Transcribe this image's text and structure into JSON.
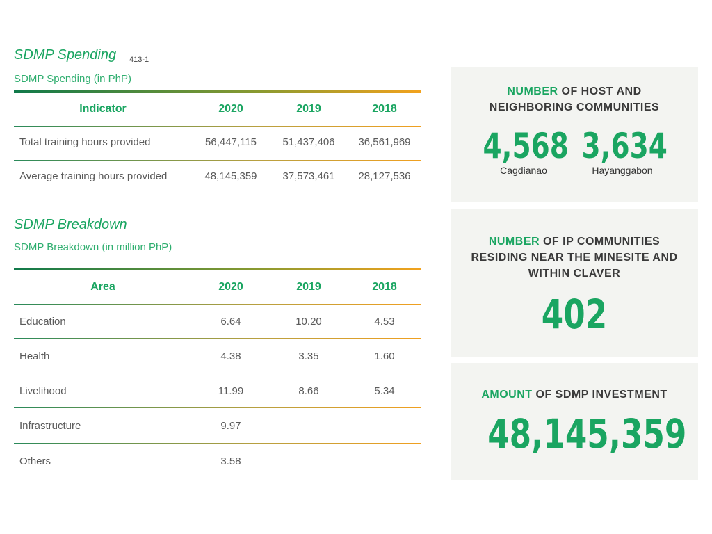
{
  "spending": {
    "title": "SDMP Spending",
    "ref": "413-1",
    "subtitle": "SDMP Spending (in PhP)",
    "headers": [
      "Indicator",
      "2020",
      "2019",
      "2018"
    ],
    "rows": [
      {
        "label": "Total training hours provided",
        "v2020": "56,447,115",
        "v2019": "51,437,406",
        "v2018": "36,561,969"
      },
      {
        "label": "Average training hours provided",
        "v2020": "48,145,359",
        "v2019": "37,573,461",
        "v2018": "28,127,536"
      }
    ]
  },
  "breakdown": {
    "title": "SDMP Breakdown",
    "subtitle": "SDMP Breakdown (in million PhP)",
    "headers": [
      "Area",
      "2020",
      "2019",
      "2018"
    ],
    "rows": [
      {
        "label": "Education",
        "v2020": "6.64",
        "v2019": "10.20",
        "v2018": "4.53"
      },
      {
        "label": "Health",
        "v2020": "4.38",
        "v2019": "3.35",
        "v2018": "1.60"
      },
      {
        "label": "Livelihood",
        "v2020": "11.99",
        "v2019": "8.66",
        "v2018": "5.34"
      },
      {
        "label": "Infrastructure",
        "v2020": "9.97",
        "v2019": "",
        "v2018": ""
      },
      {
        "label": "Others",
        "v2020": "3.58",
        "v2019": "",
        "v2018": ""
      }
    ]
  },
  "panels": {
    "host": {
      "highlight": "NUMBER",
      "line1_rest": " OF HOST AND",
      "line2": "NEIGHBORING COMMUNITIES",
      "num1": "4,568",
      "cap1": "Cagdianao",
      "num2": "3,634",
      "cap2": "Hayanggabon"
    },
    "ip": {
      "highlight": "NUMBER",
      "line1_rest": " OF IP COMMUNITIES",
      "line2": "RESIDING NEAR THE MINESITE AND",
      "line3": "WITHIN CLAVER",
      "num": "402"
    },
    "investment": {
      "highlight": "AMOUNT",
      "line1_rest": " OF SDMP INVESTMENT",
      "num": "48,145,359"
    }
  },
  "colors": {
    "accent": "#1aa561",
    "orange": "#f3a21d",
    "panel_bg": "#f3f4f1"
  }
}
